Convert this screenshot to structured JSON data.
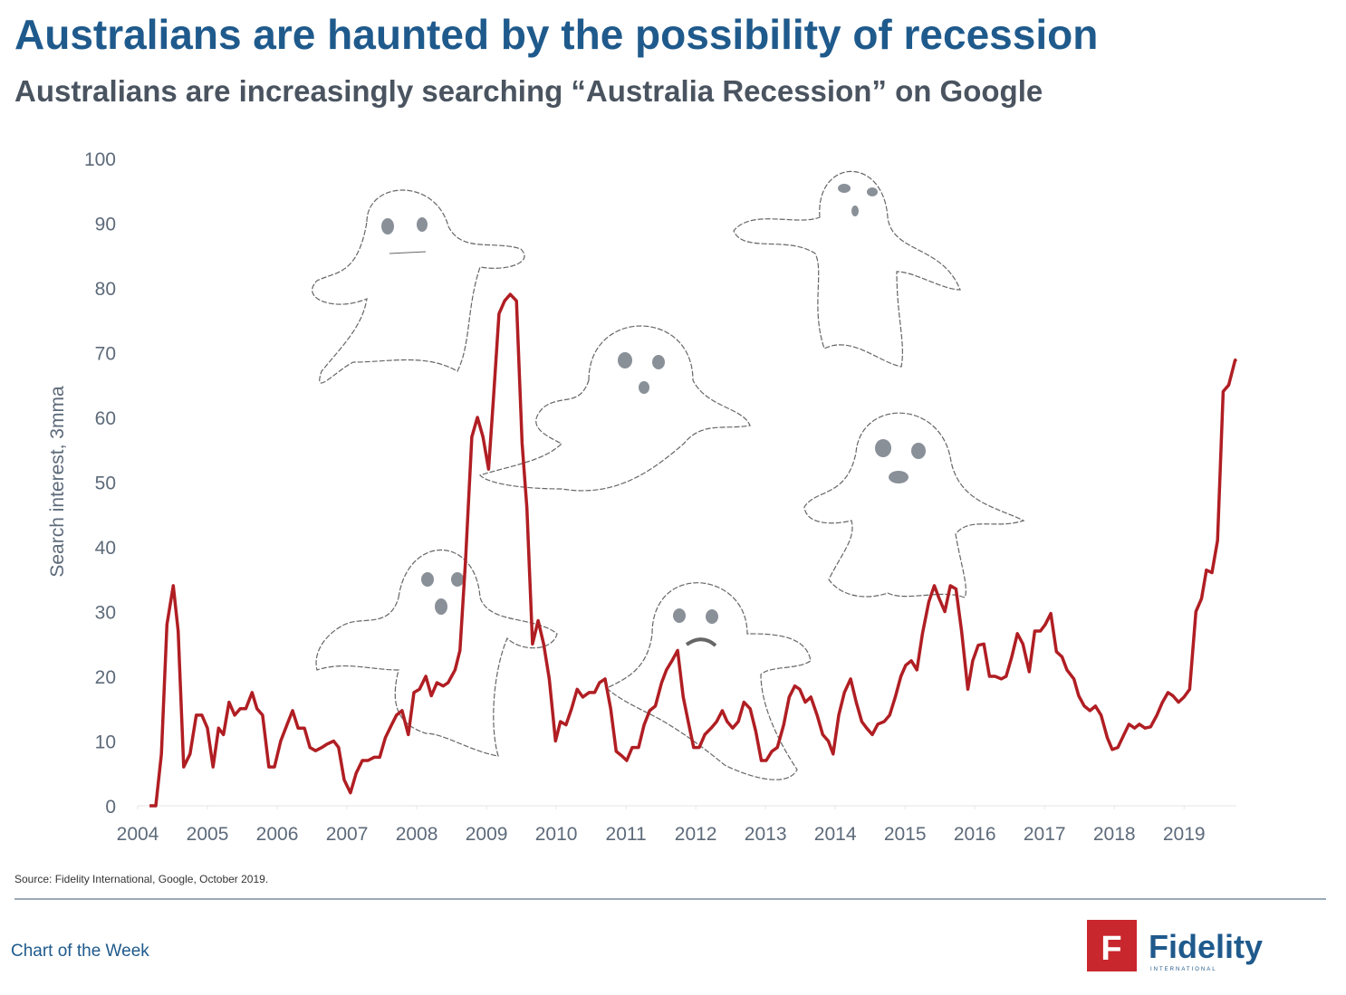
{
  "chart_data": {
    "type": "line",
    "title": "Australians are haunted by the possibility of recession",
    "subtitle": "Australians are increasingly searching “Australia Recession” on Google",
    "y_label": "Search interest, 3mma",
    "source": "Source: Fidelity International, Google, October 2019.",
    "footer": "Chart of the Week",
    "logo": "Fidelity",
    "logo_sub": "INTERNATIONAL",
    "logo_letter": "F",
    "color": "#b01e23",
    "grid": false,
    "xlim": [
      2004,
      2019.75
    ],
    "xticks": [
      2004,
      2005,
      2006,
      2007,
      2008,
      2009,
      2010,
      2011,
      2012,
      2013,
      2014,
      2015,
      2016,
      2017,
      2018,
      2019
    ],
    "ylim": [
      0,
      100
    ],
    "yticks": [
      0,
      10,
      20,
      30,
      40,
      50,
      60,
      70,
      80,
      90,
      100
    ],
    "x": [
      2004.17,
      2004.26,
      2004.34,
      2004.42,
      2004.51,
      2004.58,
      2004.66,
      2004.75,
      2004.84,
      2004.92,
      2005.0,
      2005.08,
      2005.16,
      2005.23,
      2005.31,
      2005.39,
      2005.47,
      2005.55,
      2005.64,
      2005.71,
      2005.79,
      2005.88,
      2005.96,
      2006.05,
      2006.14,
      2006.22,
      2006.3,
      2006.39,
      2006.47,
      2006.55,
      2006.64,
      2006.71,
      2006.81,
      2006.88,
      2006.96,
      2007.05,
      2007.13,
      2007.22,
      2007.3,
      2007.39,
      2007.47,
      2007.55,
      2007.64,
      2007.71,
      2007.79,
      2007.88,
      2007.96,
      2008.04,
      2008.13,
      2008.21,
      2008.29,
      2008.38,
      2008.45,
      2008.55,
      2008.62,
      2008.7,
      2008.79,
      2008.87,
      2008.95,
      2009.03,
      2009.1,
      2009.18,
      2009.26,
      2009.34,
      2009.43,
      2009.51,
      2009.58,
      2009.66,
      2009.74,
      2009.82,
      2009.9,
      2009.99,
      2010.06,
      2010.14,
      2010.22,
      2010.3,
      2010.38,
      2010.47,
      2010.55,
      2010.62,
      2010.7,
      2010.78,
      2010.86,
      2010.94,
      2011.01,
      2011.09,
      2011.18,
      2011.26,
      2011.34,
      2011.42,
      2011.51,
      2011.58,
      2011.66,
      2011.74,
      2011.82,
      2011.9,
      2011.97,
      2012.05,
      2012.13,
      2012.22,
      2012.3,
      2012.38,
      2012.45,
      2012.53,
      2012.61,
      2012.69,
      2012.78,
      2012.86,
      2012.94,
      2013.01,
      2013.09,
      2013.17,
      2013.26,
      2013.34,
      2013.42,
      2013.49,
      2013.57,
      2013.65,
      2013.74,
      2013.82,
      2013.9,
      2013.97,
      2014.05,
      2014.13,
      2014.22,
      2014.3,
      2014.38,
      2014.45,
      2014.53,
      2014.61,
      2014.7,
      2014.78,
      2014.86,
      2014.94,
      2015.01,
      2015.09,
      2015.17,
      2015.25,
      2015.34,
      2015.42,
      2015.49,
      2015.57,
      2015.65,
      2015.73,
      2015.81,
      2015.9,
      2015.97,
      2016.05,
      2016.13,
      2016.21,
      2016.29,
      2016.38,
      2016.45,
      2016.53,
      2016.61,
      2016.69,
      2016.78,
      2016.86,
      2016.94,
      2017.01,
      2017.09,
      2017.17,
      2017.25,
      2017.32,
      2017.42,
      2017.49,
      2017.57,
      2017.65,
      2017.73,
      2017.81,
      2017.9,
      2017.97,
      2018.05,
      2018.13,
      2018.21,
      2018.29,
      2018.36,
      2018.44,
      2018.52,
      2018.61,
      2018.69,
      2018.77,
      2018.84,
      2018.92,
      2019.0,
      2019.08,
      2019.17,
      2019.25,
      2019.32,
      2019.4,
      2019.48,
      2019.56,
      2019.64,
      2019.73,
      2019.75
    ],
    "values": [
      0,
      0,
      8,
      28,
      34,
      27,
      6,
      8,
      14,
      14,
      12,
      6,
      12,
      11,
      16,
      14,
      15,
      15,
      17.5,
      15,
      14,
      6,
      6,
      10,
      12.5,
      14.7,
      12,
      12,
      9,
      8.5,
      9,
      9.5,
      10,
      9,
      4,
      2,
      5,
      7,
      7,
      7.5,
      7.5,
      10.5,
      12.5,
      14,
      14.7,
      11,
      17.5,
      18,
      20,
      17,
      19,
      18.5,
      19,
      21,
      24,
      38,
      57,
      60,
      57,
      52,
      63,
      76,
      78,
      79,
      78,
      56,
      46,
      25,
      28.6,
      25,
      19.6,
      10,
      13,
      12.5,
      15,
      18,
      16.8,
      17.5,
      17.5,
      19,
      19.6,
      15,
      8.4,
      7.7,
      7,
      9,
      9,
      12.5,
      14.7,
      15.4,
      19,
      21,
      22.4,
      24,
      16.8,
      12.6,
      9,
      9,
      11,
      12,
      13,
      14.7,
      13,
      12,
      13,
      16,
      15,
      11.5,
      7,
      7,
      8.4,
      9,
      12.5,
      16.8,
      18.5,
      18,
      16,
      16.8,
      14,
      11,
      10,
      8,
      14,
      17.5,
      19.6,
      16,
      13,
      12,
      11,
      12.6,
      13,
      14,
      16.8,
      20,
      21.7,
      22.4,
      21,
      26.6,
      31.5,
      34,
      32,
      30,
      34,
      33.5,
      27,
      18,
      22.4,
      24.8,
      25,
      20,
      20,
      19.6,
      20,
      23,
      26.6,
      25,
      20.7,
      27,
      27,
      28,
      29.7,
      23.8,
      23,
      21,
      19.6,
      17,
      15.4,
      14.7,
      15.4,
      14,
      10.5,
      8.7,
      9,
      10.8,
      12.6,
      12,
      12.6,
      12,
      12.2,
      14,
      16,
      17.5,
      17,
      16,
      16.8,
      18,
      30,
      32,
      36.4,
      36,
      41,
      64,
      65,
      68.8,
      69
    ]
  }
}
